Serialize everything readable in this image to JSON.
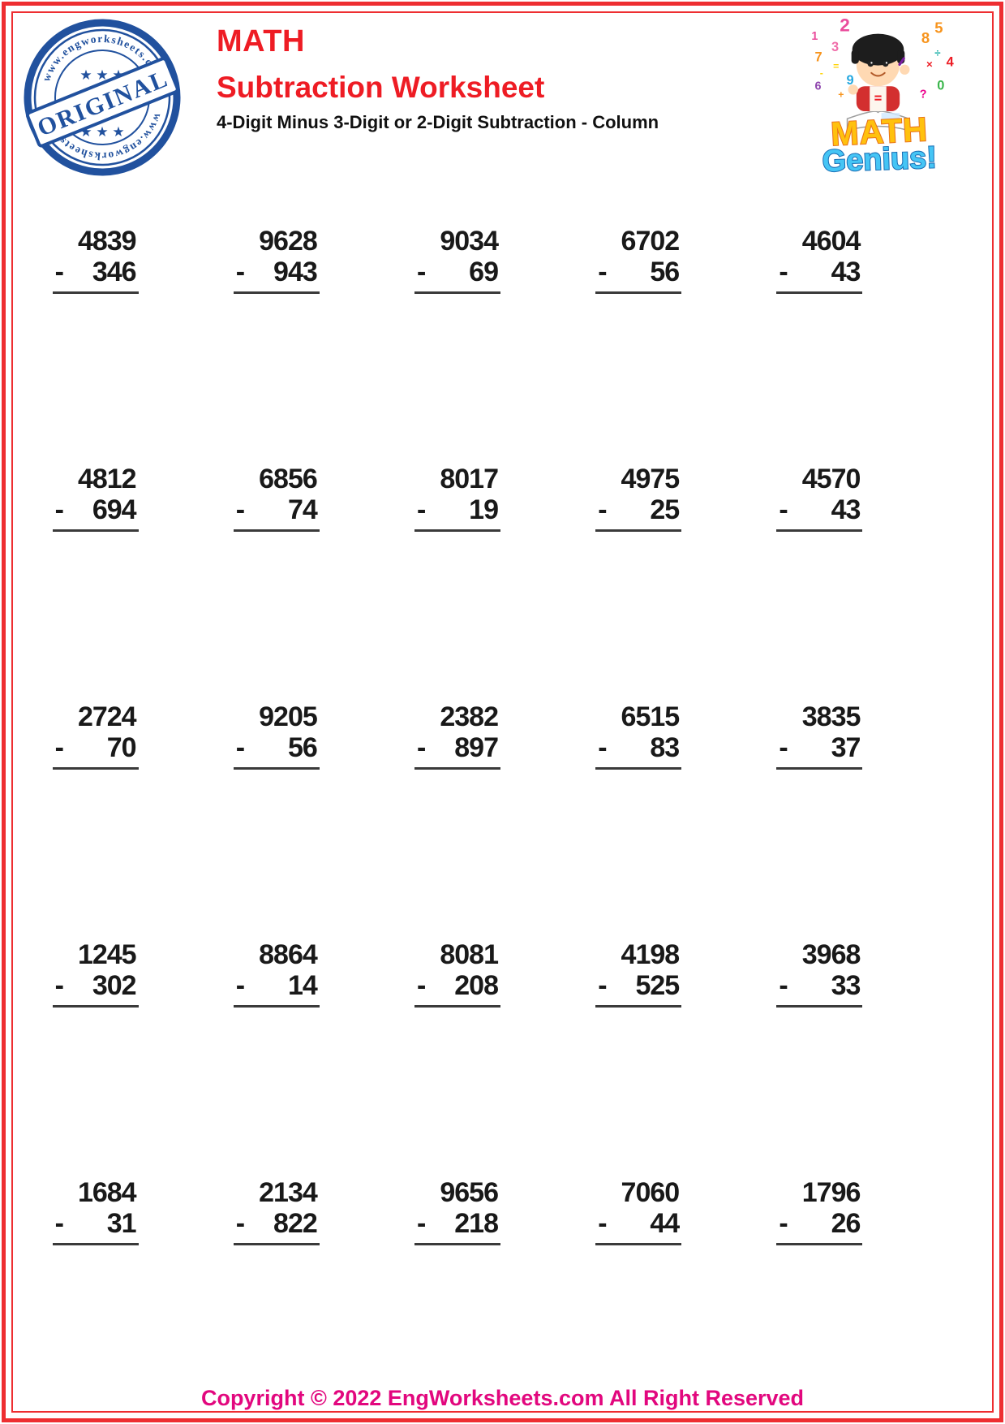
{
  "page": {
    "border_color": "#ee2e31",
    "background": "#ffffff"
  },
  "header": {
    "stamp": {
      "arc_text_top": "www.engworksheets.com",
      "arc_text_bottom": "www.engworksheets.com",
      "banner_label": "ORIGINAL",
      "stars_top": "★ ★ ★",
      "stars_bottom": "★ ★ ★",
      "color": "#21519e"
    },
    "category": "MATH",
    "title": "Subtraction Worksheet",
    "subtitle": "4-Digit Minus 3-Digit or 2-Digit Subtraction - Column",
    "title_color": "#ee1c24",
    "logo": {
      "word_top": "MATH",
      "word_bottom": "Genius!",
      "word_top_color": "#ffc10e",
      "word_bottom_color": "#45c5f5",
      "scatter": [
        {
          "char": "1",
          "color": "#ea4c9c"
        },
        {
          "char": "2",
          "color": "#ea4c9c"
        },
        {
          "char": "3",
          "color": "#f06eaa"
        },
        {
          "char": "7",
          "color": "#f7941d"
        },
        {
          "char": "=",
          "color": "#ffd200"
        },
        {
          "char": "-",
          "color": "#ffd200"
        },
        {
          "char": "9",
          "color": "#27a9e0"
        },
        {
          "char": "6",
          "color": "#8e44ad"
        },
        {
          "char": "+",
          "color": "#f7941d"
        },
        {
          "char": "5",
          "color": "#f7941d"
        },
        {
          "char": "8",
          "color": "#f7941d"
        },
        {
          "char": "÷",
          "color": "#00a79d"
        },
        {
          "char": "×",
          "color": "#ed1c24"
        },
        {
          "char": "4",
          "color": "#ed1c24"
        },
        {
          "char": "0",
          "color": "#39b54a"
        },
        {
          "char": "?",
          "color": "#ec008c"
        }
      ]
    }
  },
  "problems": [
    {
      "minuend": "4839",
      "op": "-",
      "subtrahend": "346"
    },
    {
      "minuend": "9628",
      "op": "-",
      "subtrahend": "943"
    },
    {
      "minuend": "9034",
      "op": "-",
      "subtrahend": "69"
    },
    {
      "minuend": "6702",
      "op": "-",
      "subtrahend": "56"
    },
    {
      "minuend": "4604",
      "op": "-",
      "subtrahend": "43"
    },
    {
      "minuend": "4812",
      "op": "-",
      "subtrahend": "694"
    },
    {
      "minuend": "6856",
      "op": "-",
      "subtrahend": "74"
    },
    {
      "minuend": "8017",
      "op": "-",
      "subtrahend": "19"
    },
    {
      "minuend": "4975",
      "op": "-",
      "subtrahend": "25"
    },
    {
      "minuend": "4570",
      "op": "-",
      "subtrahend": "43"
    },
    {
      "minuend": "2724",
      "op": "-",
      "subtrahend": "70"
    },
    {
      "minuend": "9205",
      "op": "-",
      "subtrahend": "56"
    },
    {
      "minuend": "2382",
      "op": "-",
      "subtrahend": "897"
    },
    {
      "minuend": "6515",
      "op": "-",
      "subtrahend": "83"
    },
    {
      "minuend": "3835",
      "op": "-",
      "subtrahend": "37"
    },
    {
      "minuend": "1245",
      "op": "-",
      "subtrahend": "302"
    },
    {
      "minuend": "8864",
      "op": "-",
      "subtrahend": "14"
    },
    {
      "minuend": "8081",
      "op": "-",
      "subtrahend": "208"
    },
    {
      "minuend": "4198",
      "op": "-",
      "subtrahend": "525"
    },
    {
      "minuend": "3968",
      "op": "-",
      "subtrahend": "33"
    },
    {
      "minuend": "1684",
      "op": "-",
      "subtrahend": "31"
    },
    {
      "minuend": "2134",
      "op": "-",
      "subtrahend": "822"
    },
    {
      "minuend": "9656",
      "op": "-",
      "subtrahend": "218"
    },
    {
      "minuend": "7060",
      "op": "-",
      "subtrahend": "44"
    },
    {
      "minuend": "1796",
      "op": "-",
      "subtrahend": "26"
    }
  ],
  "footer": {
    "copyright": "Copyright © 2022 EngWorksheets.com All Right Reserved",
    "color": "#e2077e"
  }
}
